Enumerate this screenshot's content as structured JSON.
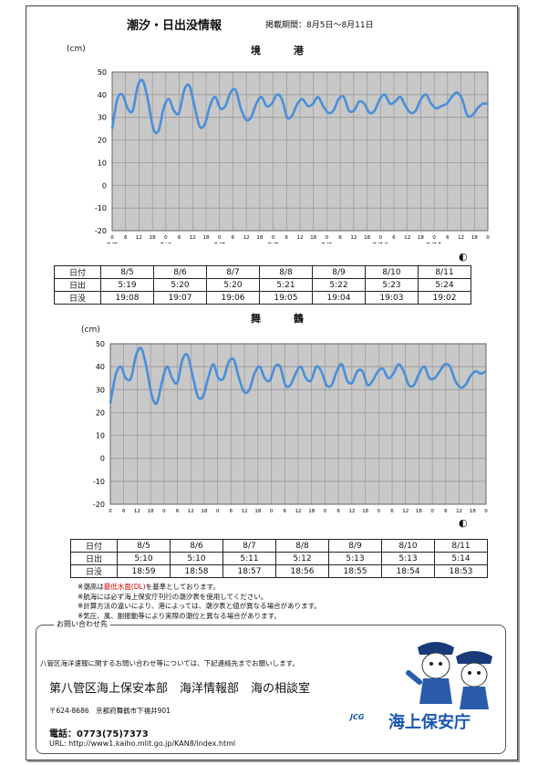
{
  "header": {
    "title": "潮汐・日出没情報",
    "period": "掲載期間：8月5日～8月11日"
  },
  "colors": {
    "line": "#4a8ed8",
    "grid": "#909090",
    "plot_bg": "#c8c8c8",
    "accent": "#1a55b0",
    "warning": "#dd0000"
  },
  "charts": [
    {
      "port": "境 港",
      "unit": "(cm)",
      "moon_icon": "half-moon-icon",
      "moon_glyph": "◐",
      "sun_table": {
        "row_labels": [
          "日付",
          "日出",
          "日没"
        ],
        "dates": [
          "8/5",
          "8/6",
          "8/7",
          "8/8",
          "8/9",
          "8/10",
          "8/11"
        ],
        "sunrise": [
          "5:19",
          "5:20",
          "5:20",
          "5:21",
          "5:22",
          "5:23",
          "5:24"
        ],
        "sunset": [
          "19:08",
          "19:07",
          "19:06",
          "19:05",
          "19:04",
          "19:03",
          "19:02"
        ]
      }
    },
    {
      "port": "舞 鶴",
      "unit": "(cm)",
      "moon_icon": "half-moon-icon",
      "moon_glyph": "◐",
      "sun_table": {
        "row_labels": [
          "日付",
          "日出",
          "日没"
        ],
        "dates": [
          "8/5",
          "8/6",
          "8/7",
          "8/8",
          "8/9",
          "8/10",
          "8/11"
        ],
        "sunrise": [
          "5:10",
          "5:10",
          "5:11",
          "5:12",
          "5:13",
          "5:13",
          "5:14"
        ],
        "sunset": [
          "18:59",
          "18:58",
          "18:57",
          "18:56",
          "18:55",
          "18:54",
          "18:53"
        ]
      }
    }
  ],
  "chart_data": [
    {
      "type": "line",
      "title": "境 港",
      "ylabel": "(cm)",
      "ylim": [
        -20,
        50
      ],
      "yticks": [
        -20,
        -10,
        0,
        10,
        20,
        30,
        40,
        50
      ],
      "hour_ticks": [
        "0",
        "6",
        "12",
        "18"
      ],
      "last_hour_tick": "0",
      "day_labels": [
        "8/5",
        "8/6",
        "8/7",
        "8/8",
        "8/9",
        "8/10",
        "8/11"
      ],
      "grid": true,
      "series": [
        {
          "values": [
            25,
            38,
            40,
            34,
            33,
            44,
            46,
            37,
            25,
            24,
            34,
            38,
            33,
            32,
            42,
            44,
            35,
            26,
            27,
            35,
            39,
            34,
            35,
            41,
            42,
            34,
            29,
            30,
            36,
            39,
            35,
            36,
            40,
            38,
            30,
            31,
            36,
            38,
            35,
            36,
            39,
            35,
            32,
            33,
            38,
            39,
            33,
            33,
            37,
            36,
            32,
            33,
            38,
            40,
            36,
            37,
            39,
            35,
            32,
            33,
            38,
            40,
            36,
            34,
            35,
            36,
            39,
            41,
            38,
            31,
            31,
            34,
            36,
            36
          ]
        }
      ]
    },
    {
      "type": "line",
      "title": "舞 鶴",
      "ylabel": "(cm)",
      "ylim": [
        -20,
        50
      ],
      "yticks": [
        -20,
        -10,
        0,
        10,
        20,
        30,
        40,
        50
      ],
      "hour_ticks": [
        "0",
        "6",
        "12",
        "18"
      ],
      "last_hour_tick": "0",
      "day_labels": [
        "8/5",
        "8/6",
        "8/7",
        "8/8",
        "8/9",
        "8/10",
        "8/11"
      ],
      "grid": true,
      "series": [
        {
          "values": [
            24,
            36,
            40,
            35,
            35,
            45,
            48,
            40,
            28,
            24,
            33,
            40,
            35,
            33,
            43,
            45,
            36,
            27,
            27,
            35,
            41,
            35,
            35,
            42,
            43,
            35,
            29,
            30,
            37,
            40,
            35,
            34,
            40,
            40,
            32,
            32,
            37,
            40,
            35,
            34,
            40,
            38,
            32,
            32,
            38,
            41,
            34,
            33,
            38,
            38,
            32,
            34,
            38,
            39,
            35,
            37,
            41,
            38,
            32,
            32,
            37,
            40,
            35,
            35,
            38,
            41,
            40,
            34,
            31,
            32,
            36,
            38,
            37,
            38
          ]
        }
      ]
    }
  ],
  "notes": [
    {
      "pre": "※潮高は",
      "red": "最低水面(DL)",
      "post": "を基準としております。"
    },
    {
      "pre": "※航海には必ず海上保安庁刊行の潮汐表を使用してください。",
      "red": "",
      "post": ""
    },
    {
      "pre": "※計算方法の違いにより、港によっては、潮汐表と値が異なる場合があります。",
      "red": "",
      "post": ""
    },
    {
      "pre": "※気圧、風、副振動等により実際の潮位と異なる場合があります。",
      "red": "",
      "post": ""
    }
  ],
  "contact": {
    "label": "お問い合わせ先",
    "intro": "八管区海洋速報に関するお問い合わせ等については、下記連絡先までお願いします。",
    "org": "第八管区海上保安本部　海洋情報部　海の相談室",
    "address": "〒624-8686　京都府舞鶴市下福井901",
    "tel": "電話：0773(75)7373",
    "url": "URL: http://www1.kaiho.mlit.go.jp/KAN8/index.html",
    "logo_mark": "JCG",
    "logo_text": "海上保安庁"
  }
}
